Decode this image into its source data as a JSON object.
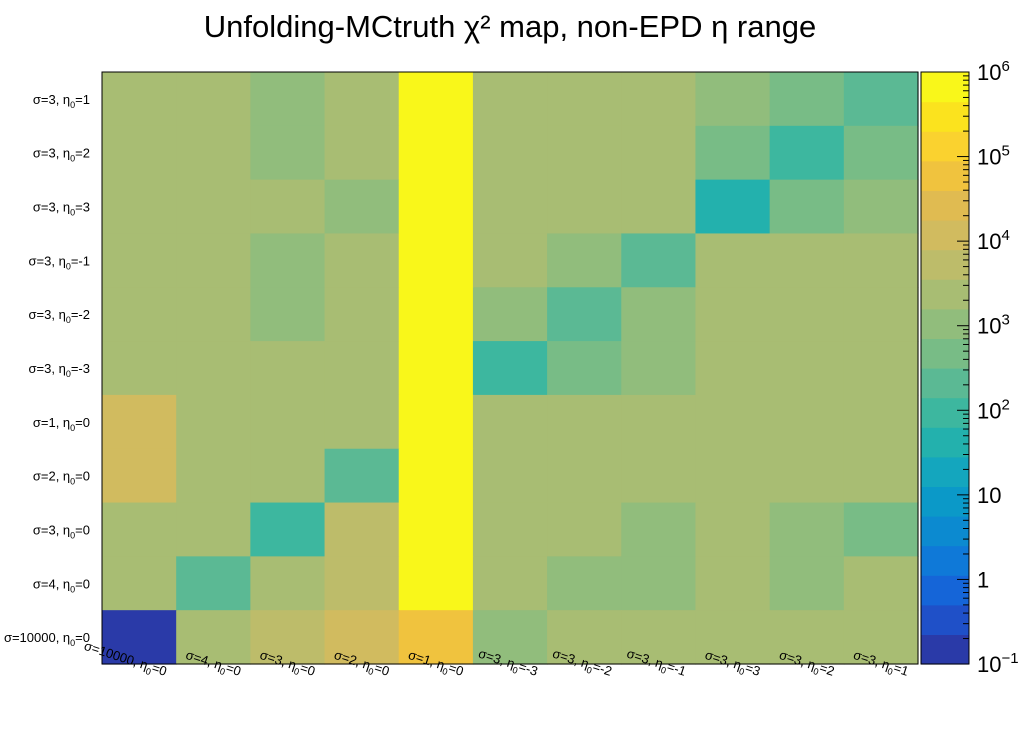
{
  "chart_data": {
    "type": "heatmap",
    "title": "Unfolding-MCtruth χ² map, non-EPD η range",
    "x_categories": [
      "σ=10000, η₀=0",
      "σ=4, η₀=0",
      "σ=3, η₀=0",
      "σ=2, η₀=0",
      "σ=1, η₀=0",
      "σ=3, η₀=-3",
      "σ=3, η₀=-2",
      "σ=3, η₀=-1",
      "σ=3, η₀=3",
      "σ=3, η₀=2",
      "σ=3, η₀=1"
    ],
    "y_categories": [
      "σ=3, η₀=1",
      "σ=3, η₀=2",
      "σ=3, η₀=3",
      "σ=3, η₀=-1",
      "σ=3, η₀=-2",
      "σ=3, η₀=-3",
      "σ=1, η₀=0",
      "σ=2, η₀=0",
      "σ=3, η₀=0",
      "σ=4, η₀=0",
      "σ=10000, η₀=0"
    ],
    "z_scale": "log",
    "z_range": [
      0.1,
      1000000
    ],
    "z_ticks": [
      "10⁻¹",
      "1",
      "10",
      "10²",
      "10³",
      "10⁴",
      "10⁵",
      "10⁶"
    ],
    "palette": [
      "#2a3aa8",
      "#1f50c8",
      "#1565d8",
      "#0f79d8",
      "#0c8ad0",
      "#0b99c8",
      "#14a6be",
      "#23b1ad",
      "#3db79f",
      "#5bb994",
      "#78bc86",
      "#91bd7c",
      "#a8bd73",
      "#bdbc6a",
      "#d1bb5f",
      "#e0bb51",
      "#f0c33e",
      "#fad22f",
      "#fbe31e",
      "#f9f71a"
    ],
    "values": [
      [
        2500,
        1800,
        1100,
        3500,
        1000000,
        1800,
        1800,
        1800,
        900,
        500,
        150
      ],
      [
        2500,
        1800,
        1100,
        1800,
        1000000,
        1800,
        1800,
        1800,
        500,
        80,
        600
      ],
      [
        2500,
        1800,
        1800,
        1100,
        1000000,
        1800,
        1800,
        1800,
        50,
        500,
        1100
      ],
      [
        2500,
        1800,
        1100,
        3000,
        1000000,
        1800,
        1100,
        250,
        1800,
        1800,
        1800
      ],
      [
        2500,
        1800,
        1100,
        3000,
        1000000,
        1100,
        250,
        1100,
        1800,
        1800,
        1800
      ],
      [
        2500,
        1800,
        1800,
        1800,
        1000000,
        80,
        500,
        1100,
        1800,
        1800,
        1800
      ],
      [
        9000,
        3000,
        3000,
        1800,
        1000000,
        3000,
        3000,
        3000,
        3000,
        3000,
        3000
      ],
      [
        9000,
        3000,
        3000,
        150,
        1000000,
        3000,
        3000,
        3000,
        1800,
        1800,
        1800
      ],
      [
        2500,
        1800,
        100,
        7000,
        1000000,
        1800,
        1800,
        1100,
        1800,
        1100,
        600
      ],
      [
        2500,
        250,
        1800,
        7000,
        1000000,
        1800,
        1100,
        1100,
        1800,
        1100,
        1800
      ],
      [
        0.1,
        3000,
        7000,
        15000,
        60000,
        1100,
        1800,
        3000,
        1800,
        3000,
        3000
      ]
    ]
  }
}
